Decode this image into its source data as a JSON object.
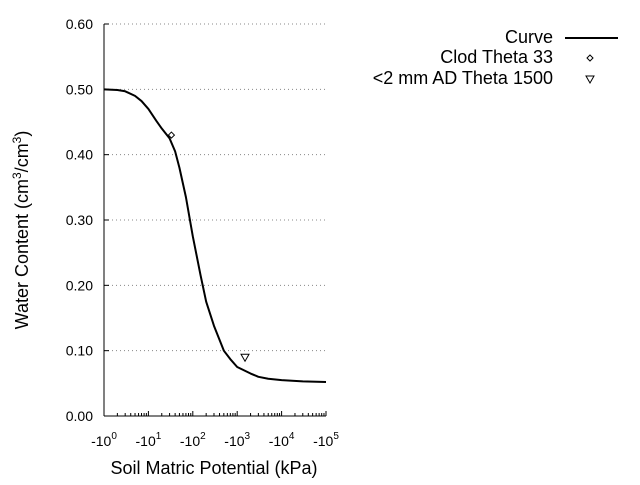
{
  "chart_data": {
    "type": "line",
    "xlabel": "Soil Matric Potential (kPa)",
    "ylabel_main": "Water Content (cm",
    "ylabel_sup1": "3",
    "ylabel_mid": "/cm",
    "ylabel_sup2": "3",
    "ylabel_end": ")",
    "x_scale": "log",
    "xlim": [
      1,
      100000
    ],
    "ylim": [
      0.0,
      0.6
    ],
    "x_ticks": [
      {
        "value": 1,
        "base": "-10",
        "exp": "0"
      },
      {
        "value": 10,
        "base": "-10",
        "exp": "1"
      },
      {
        "value": 100,
        "base": "-10",
        "exp": "2"
      },
      {
        "value": 1000,
        "base": "-10",
        "exp": "3"
      },
      {
        "value": 10000,
        "base": "-10",
        "exp": "4"
      },
      {
        "value": 100000,
        "base": "-10",
        "exp": "5"
      }
    ],
    "y_ticks": [
      {
        "value": 0.0,
        "label": "0.00"
      },
      {
        "value": 0.1,
        "label": "0.10"
      },
      {
        "value": 0.2,
        "label": "0.20"
      },
      {
        "value": 0.3,
        "label": "0.30"
      },
      {
        "value": 0.4,
        "label": "0.40"
      },
      {
        "value": 0.5,
        "label": "0.50"
      },
      {
        "value": 0.6,
        "label": "0.60"
      }
    ],
    "grid": "horizontal dotted",
    "legend_position": "top-right",
    "series": [
      {
        "name": "Curve",
        "kind": "line",
        "color": "#000000",
        "points": [
          [
            1,
            0.5
          ],
          [
            2,
            0.499
          ],
          [
            3,
            0.497
          ],
          [
            5,
            0.49
          ],
          [
            7,
            0.482
          ],
          [
            10,
            0.47
          ],
          [
            15,
            0.452
          ],
          [
            20,
            0.44
          ],
          [
            30,
            0.425
          ],
          [
            40,
            0.405
          ],
          [
            50,
            0.38
          ],
          [
            70,
            0.335
          ],
          [
            100,
            0.275
          ],
          [
            150,
            0.215
          ],
          [
            200,
            0.175
          ],
          [
            300,
            0.138
          ],
          [
            500,
            0.1
          ],
          [
            700,
            0.087
          ],
          [
            1000,
            0.075
          ],
          [
            2000,
            0.065
          ],
          [
            3000,
            0.06
          ],
          [
            5000,
            0.057
          ],
          [
            10000,
            0.055
          ],
          [
            30000,
            0.053
          ],
          [
            100000,
            0.052
          ]
        ]
      },
      {
        "name": "Clod Theta 33",
        "kind": "points",
        "marker": "diamond",
        "color": "#000000",
        "points": [
          [
            33,
            0.43
          ]
        ]
      },
      {
        "name": "<2 mm AD Theta 1500",
        "kind": "points",
        "marker": "triangle-down",
        "color": "#000000",
        "points": [
          [
            1500,
            0.09
          ]
        ]
      }
    ]
  }
}
